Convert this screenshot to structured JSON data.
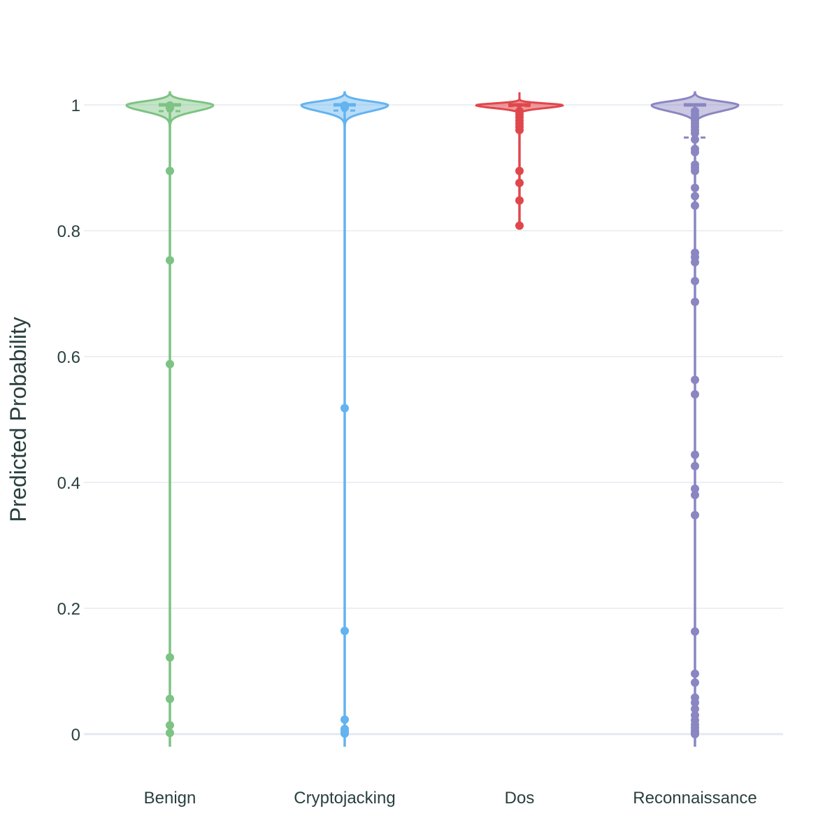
{
  "chart_data": {
    "type": "violin",
    "title": "",
    "xlabel": "",
    "ylabel": "Predicted Probability",
    "ylim": [
      -0.02,
      1.02
    ],
    "yticks": [
      {
        "value": 0,
        "label": "0"
      },
      {
        "value": 0.2,
        "label": "0.2"
      },
      {
        "value": 0.4,
        "label": "0.4"
      },
      {
        "value": 0.6,
        "label": "0.6"
      },
      {
        "value": 0.8,
        "label": "0.8"
      },
      {
        "value": 1,
        "label": "1"
      }
    ],
    "grid": true,
    "categories": [
      "Benign",
      "Cryptojacking",
      "Dos",
      "Reconnaissance"
    ],
    "series": [
      {
        "category": "Benign",
        "color": "#7dc383",
        "line_min": -0.02,
        "median": 1.0,
        "q1": 0.992,
        "mean": 0.99,
        "outliers": [
          0.895,
          0.753,
          0.588,
          0.122,
          0.056,
          0.014,
          0.002,
          0.999,
          0.995
        ]
      },
      {
        "category": "Cryptojacking",
        "color": "#63b3f0",
        "line_min": -0.02,
        "median": 1.0,
        "q1": 0.993,
        "mean": 0.991,
        "outliers": [
          0.518,
          0.164,
          0.023,
          0.008,
          0.004,
          0.001,
          0.999,
          0.996
        ]
      },
      {
        "category": "Dos",
        "color": "#e0474c",
        "line_min": 0.808,
        "median": 1.0,
        "q1": 0.999,
        "mean": 0.998,
        "outliers": [
          0.96,
          0.965,
          0.97,
          0.975,
          0.98,
          0.985,
          0.99,
          0.895,
          0.876,
          0.848,
          0.808
        ]
      },
      {
        "category": "Reconnaissance",
        "color": "#8a86c2",
        "line_min": -0.02,
        "median": 1.0,
        "q1": 0.998,
        "mean": 0.948,
        "outliers": [
          0.99,
          0.985,
          0.98,
          0.975,
          0.97,
          0.965,
          0.96,
          0.955,
          0.945,
          0.93,
          0.925,
          0.905,
          0.9,
          0.895,
          0.868,
          0.855,
          0.84,
          0.765,
          0.758,
          0.75,
          0.72,
          0.687,
          0.563,
          0.54,
          0.444,
          0.426,
          0.39,
          0.38,
          0.348,
          0.163,
          0.096,
          0.082,
          0.058,
          0.05,
          0.04,
          0.03,
          0.022,
          0.015,
          0.01,
          0.005,
          0.002,
          0.0
        ]
      }
    ]
  }
}
